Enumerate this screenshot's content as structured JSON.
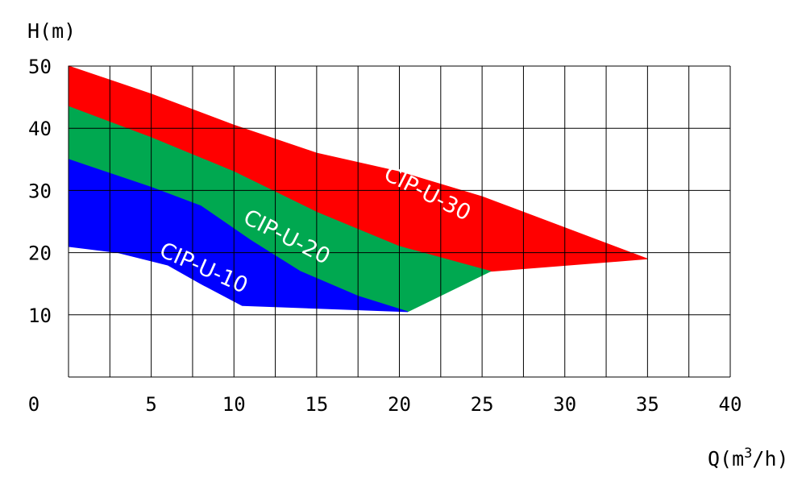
{
  "chart_data": {
    "type": "area",
    "title": "",
    "ylabel": "H(m)",
    "xlabel_main": "Q(m",
    "xlabel_sup": "3",
    "xlabel_end": "/h)",
    "xlim": [
      0,
      40
    ],
    "ylim": [
      0,
      50
    ],
    "grid": true,
    "x_ticks": [
      0,
      5,
      10,
      15,
      20,
      25,
      30,
      35,
      40
    ],
    "y_ticks": [
      10,
      20,
      30,
      40,
      50
    ],
    "x_tick_labels": [
      "0",
      "5",
      "10",
      "15",
      "20",
      "25",
      "30",
      "35",
      "40"
    ],
    "y_tick_labels": [
      "10",
      "20",
      "30",
      "40",
      "50"
    ],
    "x_grid_step": 2.5,
    "y_grid_step": 10,
    "series": [
      {
        "name": "CIP-U-30",
        "color": "#ff0000",
        "upper": [
          [
            0,
            50
          ],
          [
            5,
            45.5
          ],
          [
            10,
            40.5
          ],
          [
            15,
            36
          ],
          [
            20,
            33
          ],
          [
            25,
            29
          ],
          [
            30,
            24
          ],
          [
            35,
            19
          ]
        ],
        "lower": [
          [
            0,
            43.5
          ],
          [
            5,
            38.5
          ],
          [
            10,
            33
          ],
          [
            15,
            26.5
          ],
          [
            20,
            21
          ],
          [
            25.5,
            17
          ],
          [
            35,
            19
          ]
        ]
      },
      {
        "name": "CIP-U-20",
        "color": "#00a850",
        "upper": [
          [
            0,
            43.5
          ],
          [
            5,
            38.5
          ],
          [
            10,
            33
          ],
          [
            15,
            26.5
          ],
          [
            20,
            21
          ],
          [
            25.5,
            17
          ]
        ],
        "lower": [
          [
            0,
            35
          ],
          [
            5,
            30.5
          ],
          [
            8,
            27.5
          ],
          [
            11,
            22
          ],
          [
            14,
            17
          ],
          [
            17.5,
            13
          ],
          [
            20.5,
            10.5
          ],
          [
            25.5,
            17
          ]
        ]
      },
      {
        "name": "CIP-U-10",
        "color": "#0000ff",
        "upper": [
          [
            0,
            35
          ],
          [
            5,
            30.5
          ],
          [
            8,
            27.5
          ],
          [
            11,
            22
          ],
          [
            14,
            17
          ],
          [
            17.5,
            13
          ],
          [
            20.5,
            10.5
          ]
        ],
        "lower": [
          [
            0,
            21
          ],
          [
            3,
            20
          ],
          [
            6,
            18
          ],
          [
            8,
            15
          ],
          [
            10.5,
            11.5
          ],
          [
            20.5,
            10.5
          ]
        ]
      }
    ],
    "labels": [
      {
        "text": "CIP-U-30",
        "x": 21.5,
        "y": 28.5,
        "angle": 27
      },
      {
        "text": "CIP-U-20",
        "x": 13,
        "y": 21.5,
        "angle": 27
      },
      {
        "text": "CIP-U-10",
        "x": 8,
        "y": 16.5,
        "angle": 24
      }
    ]
  }
}
